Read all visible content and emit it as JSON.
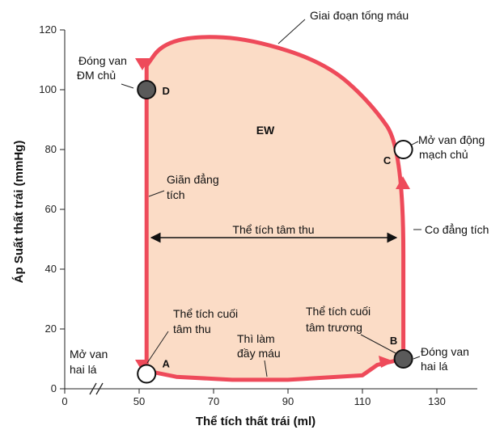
{
  "chart_data": {
    "type": "line",
    "xlabel": "Thể tích thất trái (ml)",
    "ylabel": "Áp Suất thất trái (mmHg)",
    "xlim": [
      0,
      135
    ],
    "ylim": [
      0,
      120
    ],
    "x_ticks": [
      "0",
      "50",
      "70",
      "90",
      "110",
      "130"
    ],
    "y_ticks": [
      "0",
      "20",
      "40",
      "60",
      "80",
      "100",
      "120"
    ],
    "x_axis_break": true,
    "area_label": "EW",
    "series": [
      {
        "values": [
          {
            "x": 52,
            "y": 6
          },
          {
            "x": 60,
            "y": 4
          },
          {
            "x": 75,
            "y": 3
          },
          {
            "x": 90,
            "y": 3
          },
          {
            "x": 110,
            "y": 4.5
          },
          {
            "x": 114,
            "y": 8
          },
          {
            "x": 121,
            "y": 10
          },
          {
            "x": 121,
            "y": 80
          },
          {
            "x": 112,
            "y": 96
          },
          {
            "x": 100,
            "y": 109
          },
          {
            "x": 80,
            "y": 117
          },
          {
            "x": 65,
            "y": 118
          },
          {
            "x": 56,
            "y": 115
          },
          {
            "x": 52,
            "y": 108
          },
          {
            "x": 52,
            "y": 99
          },
          {
            "x": 52,
            "y": 6
          }
        ]
      }
    ],
    "points": [
      {
        "id": "A",
        "x": 52,
        "y": 5,
        "filled": false
      },
      {
        "id": "B",
        "x": 121,
        "y": 10,
        "filled": true
      },
      {
        "id": "C",
        "x": 121,
        "y": 80,
        "filled": false
      },
      {
        "id": "D",
        "x": 52,
        "y": 100,
        "filled": true
      }
    ],
    "annotations": {
      "ejection": "Giai đoạn tống máu",
      "aortic_close_1": "Đóng van",
      "aortic_close_2": "ĐM chủ",
      "aortic_open_1": "Mở van động",
      "aortic_open_2": "mạch chủ",
      "iso_relax_1": "Giãn đẳng",
      "iso_relax_2": "tích",
      "stroke_volume": "Thể tích tâm thu",
      "iso_contract": "Co đẳng tích",
      "esv_1": "Thể tích cuối",
      "esv_2": "tâm thu",
      "edv_1": "Thể tích cuối",
      "edv_2": "tâm trương",
      "filling_1": "Thì làm",
      "filling_2": "đầy máu",
      "mitral_open_1": "Mở van",
      "mitral_open_2": "hai lá",
      "mitral_close_1": "Đóng van",
      "mitral_close_2": "hai lá"
    },
    "colors": {
      "loop_fill": "#fbdcc6",
      "loop_line": "#ee4a5a",
      "point_fill": "#5a5a5a",
      "arrow": "#111111"
    }
  }
}
